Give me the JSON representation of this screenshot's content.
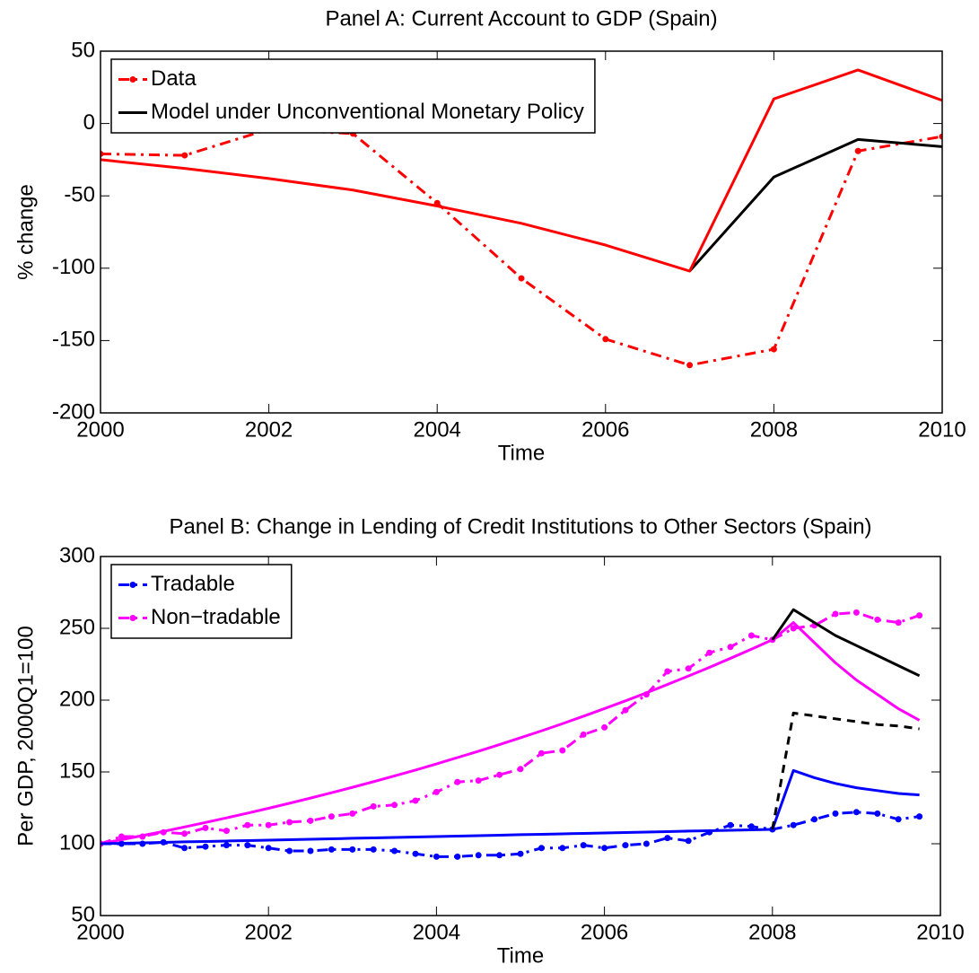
{
  "chart_data": [
    {
      "type": "line",
      "title": "Panel A: Current Account to GDP (Spain)",
      "xlabel": "Time",
      "ylabel": "% change",
      "x": [
        2000,
        2001,
        2002,
        2003,
        2004,
        2005,
        2006,
        2007,
        2008,
        2009,
        2010
      ],
      "xlim": [
        2000,
        2010
      ],
      "xticks": [
        2000,
        2002,
        2004,
        2006,
        2008,
        2010
      ],
      "ylim": [
        -200,
        50
      ],
      "yticks": [
        -200,
        -150,
        -100,
        -50,
        0,
        50
      ],
      "legend": "upper-left",
      "series": [
        {
          "name": "Data",
          "color": "#ff0000",
          "style": "dashdot",
          "marker": true,
          "values": [
            -21,
            -22,
            -4,
            -7,
            -55,
            -107,
            -149,
            -167,
            -156,
            -19,
            -9
          ]
        },
        {
          "name": "Model under Unconventional Monetary Policy",
          "color": "#000000",
          "style": "solid",
          "marker": false,
          "values": [
            null,
            null,
            null,
            null,
            null,
            null,
            null,
            -102,
            -37,
            -11,
            -16
          ]
        },
        {
          "color": "#ff0000",
          "style": "solid",
          "marker": false,
          "values": [
            -25,
            -31,
            -38,
            -46,
            -57,
            -69,
            -84,
            -102,
            17,
            37,
            16
          ]
        }
      ]
    },
    {
      "type": "line",
      "title": "Panel B: Change in Lending of Credit Institutions to Other Sectors (Spain)",
      "xlabel": "Time",
      "ylabel": "Per GDP, 2000Q1=100",
      "x": [
        2000,
        2000.25,
        2000.5,
        2000.75,
        2001,
        2001.25,
        2001.5,
        2001.75,
        2002,
        2002.25,
        2002.5,
        2002.75,
        2003,
        2003.25,
        2003.5,
        2003.75,
        2004,
        2004.25,
        2004.5,
        2004.75,
        2005,
        2005.25,
        2005.5,
        2005.75,
        2006,
        2006.25,
        2006.5,
        2006.75,
        2007,
        2007.25,
        2007.5,
        2007.75,
        2008,
        2008.25,
        2008.5,
        2008.75,
        2009,
        2009.25,
        2009.5,
        2009.75
      ],
      "xlim": [
        2000,
        2010
      ],
      "xticks": [
        2000,
        2002,
        2004,
        2006,
        2008,
        2010
      ],
      "ylim": [
        50,
        300
      ],
      "yticks": [
        50,
        100,
        150,
        200,
        250,
        300
      ],
      "legend": "upper-left",
      "series": [
        {
          "name": "Tradable",
          "color": "#0000ff",
          "style": "dashdot",
          "marker": true,
          "values": [
            100,
            100,
            100,
            101,
            97,
            98,
            99,
            99,
            97,
            95,
            95,
            96,
            96,
            96,
            95,
            93,
            91,
            91,
            92,
            92,
            93,
            97,
            97,
            99,
            97,
            99,
            100,
            104,
            102,
            108,
            113,
            112,
            110,
            113,
            117,
            121,
            122,
            121,
            117,
            119
          ]
        },
        {
          "name": "Non−tradable",
          "color": "#ff00ff",
          "style": "dashdot",
          "marker": true,
          "values": [
            100,
            105,
            105,
            108,
            107,
            111,
            109,
            113,
            113,
            115,
            116,
            119,
            121,
            126,
            127,
            130,
            136,
            143,
            144,
            148,
            152,
            163,
            165,
            176,
            181,
            193,
            204,
            220,
            222,
            233,
            237,
            245,
            242,
            250,
            252,
            260,
            261,
            256,
            254,
            259
          ]
        },
        {
          "color": "#ff00ff",
          "style": "solid",
          "marker": false,
          "values": [
            100,
            102.8,
            105.7,
            108.6,
            111.7,
            114.8,
            118,
            121.3,
            124.7,
            128.2,
            131.8,
            135.5,
            139.3,
            143.2,
            147.2,
            151.3,
            155.6,
            160,
            164.4,
            169,
            173.8,
            178.6,
            183.6,
            188.8,
            194.1,
            199.5,
            205.1,
            210.9,
            216.8,
            222.8,
            229.1,
            235.5,
            242,
            254,
            240,
            226,
            214,
            204,
            194,
            186
          ]
        },
        {
          "color": "#0000ff",
          "style": "solid",
          "marker": false,
          "values": [
            100,
            100.3,
            100.6,
            100.9,
            101.3,
            101.6,
            101.9,
            102.2,
            102.5,
            102.8,
            103.1,
            103.4,
            103.8,
            104.1,
            104.4,
            104.7,
            105,
            105.3,
            105.6,
            105.9,
            106.3,
            106.6,
            106.9,
            107.2,
            107.5,
            107.8,
            108.1,
            108.4,
            108.8,
            109.1,
            109.4,
            109.7,
            110,
            151,
            146,
            142,
            139,
            137,
            135,
            134
          ]
        },
        {
          "color": "#000000",
          "style": "solid",
          "marker": false,
          "values": [
            null,
            null,
            null,
            null,
            null,
            null,
            null,
            null,
            null,
            null,
            null,
            null,
            null,
            null,
            null,
            null,
            null,
            null,
            null,
            null,
            null,
            null,
            null,
            null,
            null,
            null,
            null,
            null,
            null,
            null,
            null,
            null,
            242,
            263,
            254,
            245,
            238,
            231,
            224,
            217
          ]
        },
        {
          "color": "#000000",
          "style": "dashed",
          "marker": false,
          "values": [
            null,
            null,
            null,
            null,
            null,
            null,
            null,
            null,
            null,
            null,
            null,
            null,
            null,
            null,
            null,
            null,
            null,
            null,
            null,
            null,
            null,
            null,
            null,
            null,
            null,
            null,
            null,
            null,
            null,
            null,
            null,
            null,
            110,
            191,
            189,
            187,
            185,
            183,
            182,
            180
          ]
        }
      ]
    }
  ]
}
